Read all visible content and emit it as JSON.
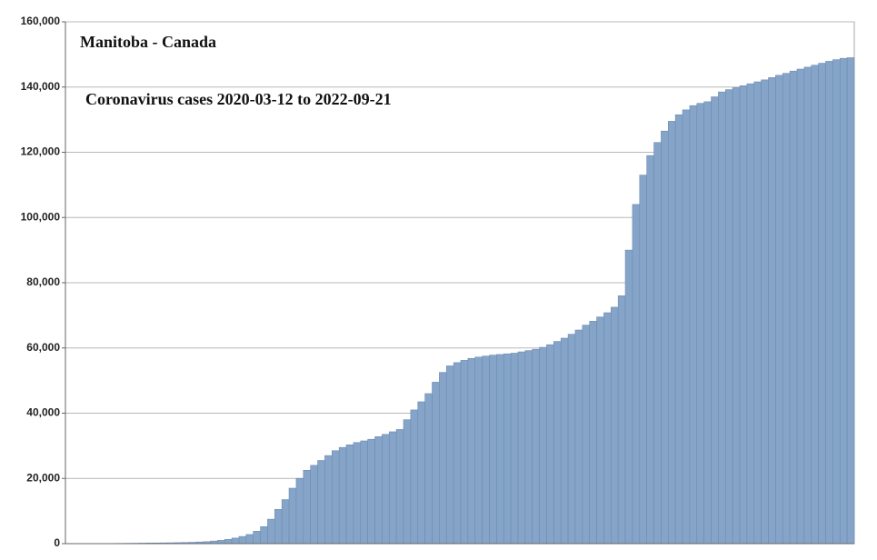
{
  "chart_data": {
    "type": "bar",
    "title": "Manitoba - Canada",
    "subtitle": "Coronavirus cases 2020-03-12 to 2022-09-21",
    "values": [
      0,
      0,
      10,
      20,
      30,
      40,
      60,
      80,
      100,
      120,
      150,
      180,
      200,
      230,
      260,
      300,
      350,
      400,
      500,
      600,
      800,
      1000,
      1300,
      1700,
      2200,
      2800,
      3800,
      5200,
      7500,
      10500,
      13500,
      17000,
      20000,
      22500,
      24000,
      25500,
      27000,
      28500,
      29500,
      30300,
      31000,
      31500,
      32000,
      32800,
      33500,
      34300,
      35000,
      38000,
      41000,
      43500,
      46000,
      49500,
      52500,
      54500,
      55500,
      56200,
      56800,
      57200,
      57500,
      57800,
      58000,
      58200,
      58400,
      58800,
      59200,
      59600,
      60200,
      61000,
      62000,
      63000,
      64200,
      65500,
      67000,
      68200,
      69500,
      70800,
      72500,
      76000,
      90000,
      104000,
      113000,
      119000,
      123000,
      126500,
      129500,
      131500,
      133000,
      134300,
      135000,
      135500,
      137000,
      138500,
      139200,
      139800,
      140400,
      141000,
      141600,
      142200,
      142900,
      143600,
      144200,
      144900,
      145500,
      146100,
      146700,
      147300,
      147900,
      148400,
      148800,
      149000
    ],
    "color": "#86a4c8",
    "ylim": [
      0,
      160000
    ],
    "yticks": [
      0,
      {
        "value": 20000,
        "label": "20,000"
      },
      {
        "value": 40000,
        "label": "40,000"
      },
      {
        "value": 60000,
        "label": "60,000"
      },
      {
        "value": 80000,
        "label": "80,000"
      },
      {
        "value": 100000,
        "label": "100,000"
      },
      {
        "value": 120000,
        "label": "120,000"
      },
      {
        "value": 140000,
        "label": "140,000"
      },
      {
        "value": 160000,
        "label": "160,000"
      }
    ],
    "grid": true
  }
}
